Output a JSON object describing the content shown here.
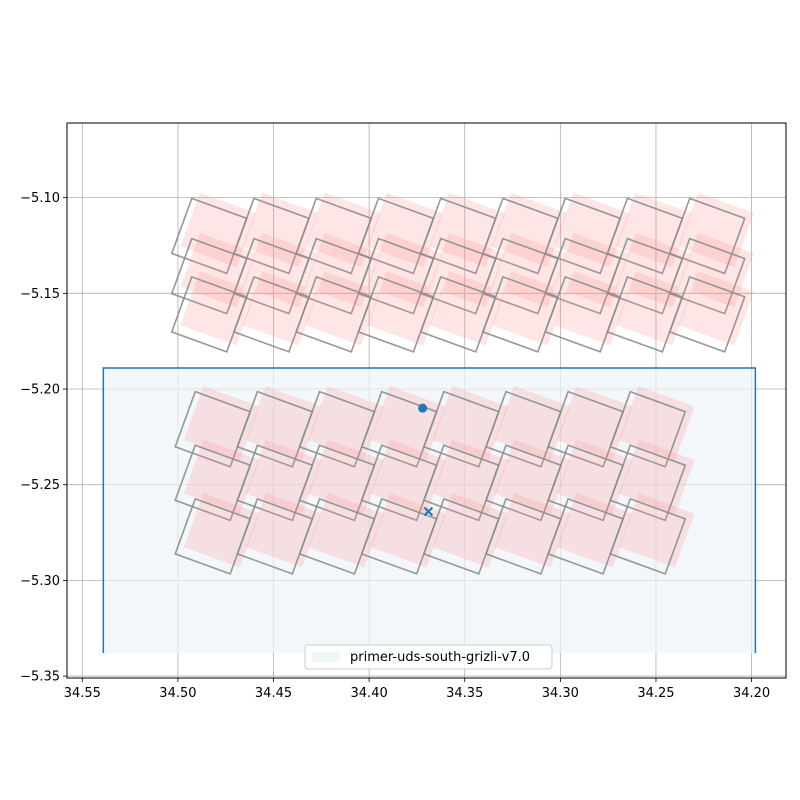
{
  "chart_data": {
    "type": "scatter",
    "title": "",
    "xlabel": "",
    "ylabel": "",
    "x_axis_inverted": true,
    "xlim": [
      34.558,
      34.182
    ],
    "ylim": [
      -5.351,
      -5.061
    ],
    "grid": true,
    "xticks": [
      34.55,
      34.5,
      34.45,
      34.4,
      34.35,
      34.3,
      34.25,
      34.2
    ],
    "xtick_labels": [
      "34.55",
      "34.50",
      "34.45",
      "34.40",
      "34.35",
      "34.30",
      "34.25",
      "34.20"
    ],
    "yticks": [
      -5.1,
      -5.15,
      -5.2,
      -5.25,
      -5.3,
      -5.35
    ],
    "ytick_labels": [
      "−5.10",
      "−5.15",
      "−5.20",
      "−5.25",
      "−5.30",
      "−5.35"
    ],
    "legend": {
      "placement": "lower center",
      "entries": [
        "primer-uds-south-grizli-v7.0"
      ]
    },
    "colors": {
      "field": "#1f77b4",
      "field_fill": "#eef4f8",
      "pointing_fill": "#ff8c8c",
      "footprint_edge": "#8c8c8c"
    },
    "field": {
      "name": "primer-uds-south-grizli-v7.0",
      "ra": [
        34.539,
        34.198
      ],
      "dec": [
        -5.338,
        -5.189
      ]
    },
    "markers": [
      {
        "symbol": "circle",
        "ra": 34.372,
        "dec": -5.21
      },
      {
        "symbol": "x",
        "ra": 34.369,
        "dec": -5.264
      }
    ],
    "pointing_groups": [
      {
        "name": "north",
        "ra_centers": [
          34.4836,
          34.4511,
          34.4185,
          34.386,
          34.3534,
          34.3209,
          34.2883,
          34.2558,
          34.2232
        ],
        "dec_centers": [
          -5.12,
          -5.141,
          -5.161
        ],
        "size_deg": 0.0306,
        "tilt_deg": 20
      },
      {
        "name": "south",
        "ra_centers": [
          34.4818,
          34.4493,
          34.4168,
          34.3843,
          34.3518,
          34.3193,
          34.2868,
          34.2543
        ],
        "dec_centers": [
          -5.221,
          -5.249,
          -5.277
        ],
        "size_deg": 0.0306,
        "tilt_deg": 20
      }
    ]
  }
}
